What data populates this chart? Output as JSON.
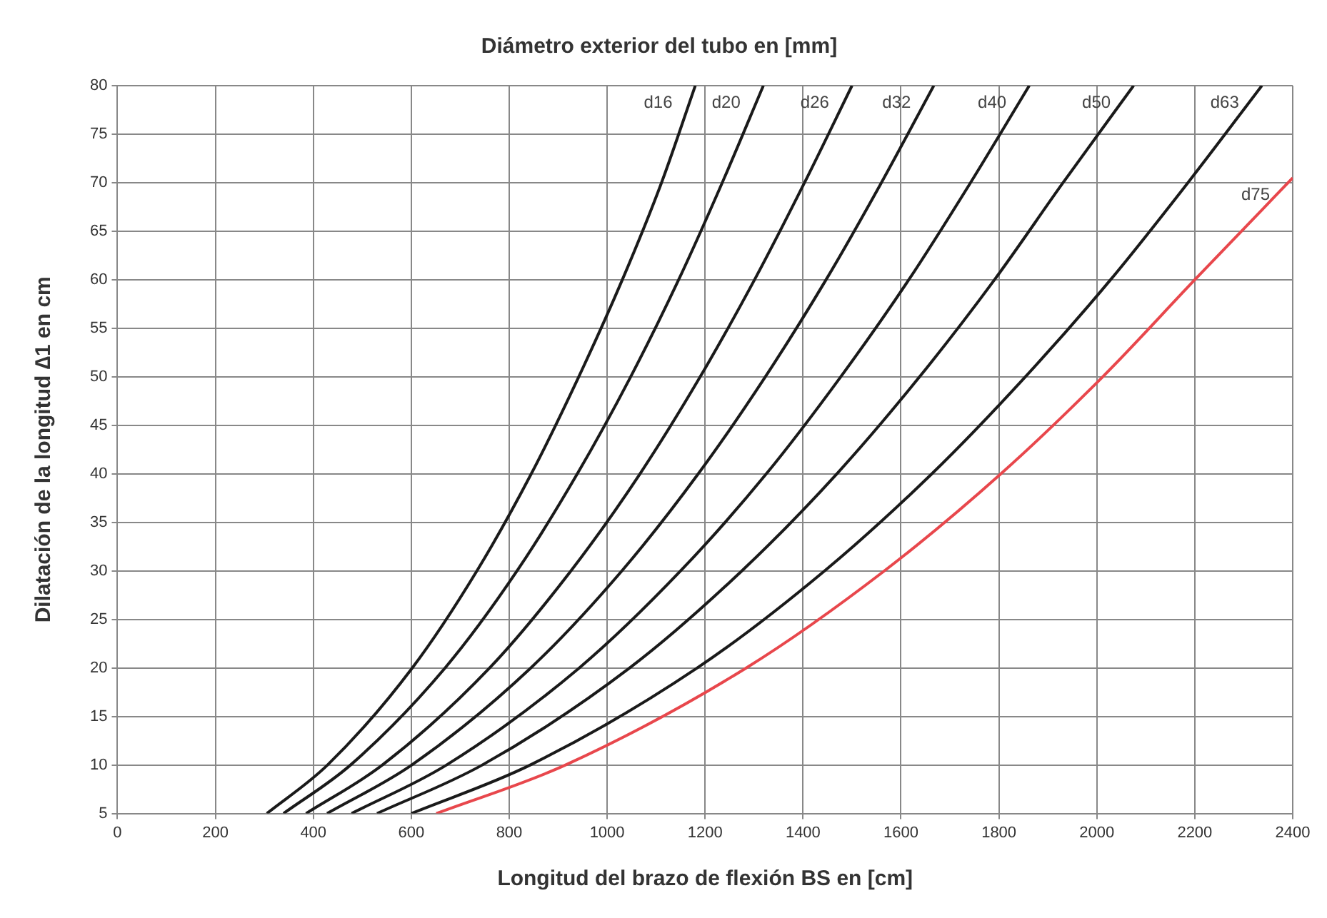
{
  "chart_data": {
    "type": "line",
    "title": "Diámetro exterior del tubo en [mm]",
    "xlabel": "Longitud del brazo de flexión BS en [cm]",
    "ylabel": "Dilatación de la longitud ∆1 en cm",
    "xlim": [
      0,
      2400
    ],
    "xticks": [
      0,
      200,
      400,
      600,
      800,
      1000,
      1200,
      1400,
      1600,
      1800,
      2000,
      2200,
      2400
    ],
    "ylim": [
      5,
      80
    ],
    "yticks": [
      5,
      10,
      15,
      20,
      25,
      30,
      35,
      40,
      45,
      50,
      55,
      60,
      65,
      70,
      75,
      80
    ],
    "grid": true,
    "legend": false,
    "marker": "none",
    "line_style": "solid",
    "series": [
      {
        "name": "d16",
        "color": "#1a1a1a",
        "x": [
          305,
          429,
          602,
          734,
          845,
          942,
          1031,
          1111,
          1180
        ],
        "values": [
          5,
          10,
          20,
          30,
          40,
          50,
          60,
          70,
          80
        ]
      },
      {
        "name": "d20",
        "color": "#1a1a1a",
        "x": [
          339,
          476,
          669,
          816,
          939,
          1048,
          1146,
          1235,
          1319
        ],
        "values": [
          5,
          10,
          20,
          30,
          40,
          50,
          60,
          70,
          80
        ]
      },
      {
        "name": "d26",
        "color": "#1a1a1a",
        "x": [
          385,
          541,
          760,
          926,
          1067,
          1190,
          1301,
          1403,
          1500
        ],
        "values": [
          5,
          10,
          20,
          30,
          40,
          50,
          60,
          70,
          80
        ]
      },
      {
        "name": "d32",
        "color": "#1a1a1a",
        "x": [
          428,
          601,
          844,
          1030,
          1186,
          1323,
          1447,
          1560,
          1667
        ],
        "values": [
          5,
          10,
          20,
          30,
          40,
          50,
          60,
          70,
          80
        ]
      },
      {
        "name": "d40",
        "color": "#1a1a1a",
        "x": [
          478,
          672,
          943,
          1150,
          1325,
          1477,
          1616,
          1742,
          1862
        ],
        "values": [
          5,
          10,
          20,
          30,
          40,
          50,
          60,
          70,
          80
        ]
      },
      {
        "name": "d50",
        "color": "#1a1a1a",
        "x": [
          530,
          745,
          1046,
          1275,
          1469,
          1638,
          1791,
          1931,
          2075
        ],
        "values": [
          5,
          10,
          20,
          30,
          40,
          50,
          60,
          70,
          80
        ]
      },
      {
        "name": "d63",
        "color": "#1a1a1a",
        "x": [
          600,
          843,
          1184,
          1444,
          1663,
          1854,
          2028,
          2186,
          2337
        ],
        "values": [
          5,
          10,
          20,
          30,
          40,
          50,
          60,
          70,
          80
        ]
      },
      {
        "name": "d75",
        "color": "#e8474c",
        "x": [
          651,
          915,
          1284,
          1566,
          1804,
          2012,
          2200,
          2400
        ],
        "values": [
          5,
          10,
          20,
          30,
          40,
          50,
          60,
          70.5
        ]
      }
    ]
  }
}
